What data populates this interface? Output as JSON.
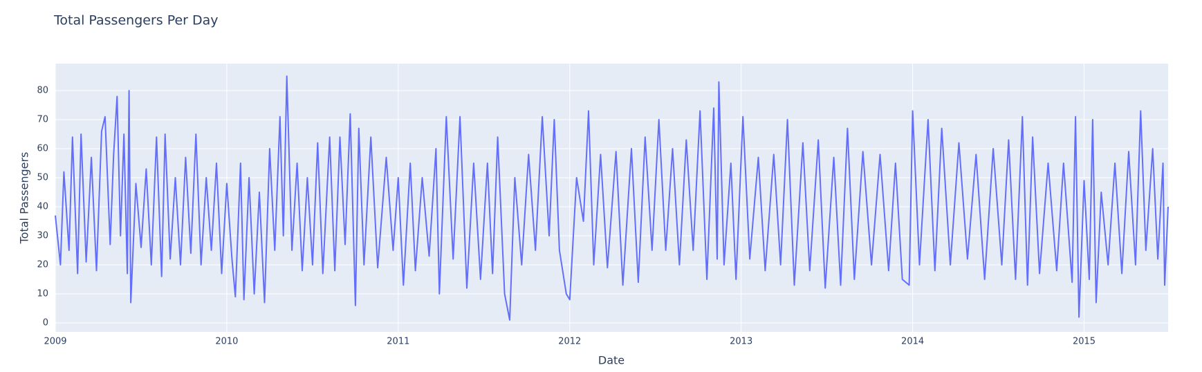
{
  "chart_data": {
    "type": "line",
    "title": "Total Passengers Per Day",
    "x_label": "Date",
    "y_label": "Total Passengers",
    "x": [
      2009.0,
      2009.03,
      2009.05,
      2009.08,
      2009.1,
      2009.13,
      2009.15,
      2009.18,
      2009.21,
      2009.24,
      2009.27,
      2009.29,
      2009.32,
      2009.34,
      2009.36,
      2009.38,
      2009.4,
      2009.42,
      2009.43,
      2009.44,
      2009.47,
      2009.5,
      2009.53,
      2009.56,
      2009.59,
      2009.62,
      2009.64,
      2009.67,
      2009.7,
      2009.73,
      2009.76,
      2009.79,
      2009.82,
      2009.85,
      2009.88,
      2009.91,
      2009.94,
      2009.97,
      2010.0,
      2010.03,
      2010.05,
      2010.08,
      2010.1,
      2010.13,
      2010.16,
      2010.19,
      2010.22,
      2010.25,
      2010.28,
      2010.31,
      2010.33,
      2010.35,
      2010.38,
      2010.41,
      2010.44,
      2010.47,
      2010.5,
      2010.53,
      2010.56,
      2010.6,
      2010.63,
      2010.66,
      2010.69,
      2010.72,
      2010.75,
      2010.77,
      2010.8,
      2010.84,
      2010.88,
      2010.93,
      2010.97,
      2011.0,
      2011.03,
      2011.07,
      2011.1,
      2011.14,
      2011.18,
      2011.22,
      2011.24,
      2011.28,
      2011.32,
      2011.36,
      2011.4,
      2011.44,
      2011.48,
      2011.52,
      2011.55,
      2011.58,
      2011.62,
      2011.65,
      2011.68,
      2011.72,
      2011.76,
      2011.8,
      2011.84,
      2011.88,
      2011.91,
      2011.94,
      2011.98,
      2012.0,
      2012.04,
      2012.08,
      2012.11,
      2012.14,
      2012.18,
      2012.22,
      2012.27,
      2012.31,
      2012.36,
      2012.4,
      2012.44,
      2012.48,
      2012.52,
      2012.56,
      2012.6,
      2012.64,
      2012.68,
      2012.72,
      2012.76,
      2012.8,
      2012.84,
      2012.86,
      2012.87,
      2012.9,
      2012.94,
      2012.97,
      2013.01,
      2013.05,
      2013.1,
      2013.14,
      2013.19,
      2013.23,
      2013.27,
      2013.31,
      2013.36,
      2013.4,
      2013.45,
      2013.49,
      2013.54,
      2013.58,
      2013.62,
      2013.66,
      2013.71,
      2013.76,
      2013.81,
      2013.86,
      2013.9,
      2013.94,
      2013.98,
      2014.0,
      2014.04,
      2014.09,
      2014.13,
      2014.17,
      2014.22,
      2014.27,
      2014.32,
      2014.37,
      2014.42,
      2014.47,
      2014.52,
      2014.56,
      2014.6,
      2014.64,
      2014.67,
      2014.7,
      2014.74,
      2014.79,
      2014.84,
      2014.88,
      2014.93,
      2014.95,
      2014.97,
      2015.0,
      2015.03,
      2015.05,
      2015.07,
      2015.1,
      2015.14,
      2015.18,
      2015.22,
      2015.26,
      2015.3,
      2015.33,
      2015.36,
      2015.4,
      2015.43,
      2015.46,
      2015.47,
      2015.49
    ],
    "series": [
      {
        "name": "Total Passengers",
        "color": "#636efa",
        "values": [
          37,
          20,
          52,
          25,
          64,
          17,
          65,
          21,
          57,
          18,
          66,
          71,
          27,
          58,
          78,
          30,
          65,
          17,
          80,
          7,
          48,
          26,
          53,
          20,
          64,
          16,
          65,
          22,
          50,
          20,
          57,
          24,
          65,
          20,
          50,
          25,
          55,
          17,
          48,
          22,
          9,
          55,
          8,
          50,
          10,
          45,
          7,
          60,
          25,
          71,
          30,
          85,
          25,
          55,
          18,
          50,
          20,
          62,
          17,
          64,
          18,
          64,
          27,
          72,
          6,
          67,
          20,
          64,
          19,
          57,
          25,
          50,
          13,
          55,
          18,
          50,
          23,
          60,
          10,
          71,
          22,
          71,
          12,
          55,
          15,
          55,
          17,
          64,
          10,
          1,
          50,
          20,
          58,
          25,
          71,
          30,
          70,
          25,
          10,
          8,
          50,
          35,
          73,
          20,
          58,
          19,
          59,
          13,
          60,
          14,
          64,
          25,
          70,
          25,
          60,
          20,
          63,
          25,
          73,
          15,
          74,
          22,
          83,
          20,
          55,
          15,
          71,
          22,
          57,
          18,
          58,
          20,
          70,
          13,
          62,
          18,
          63,
          12,
          57,
          13,
          67,
          15,
          59,
          20,
          58,
          18,
          55,
          15,
          13,
          73,
          20,
          70,
          18,
          67,
          20,
          62,
          22,
          58,
          15,
          60,
          20,
          63,
          15,
          71,
          13,
          64,
          17,
          55,
          18,
          55,
          14,
          71,
          2,
          49,
          15,
          70,
          7,
          45,
          20,
          55,
          17,
          59,
          20,
          73,
          25,
          60,
          22,
          55,
          13,
          40
        ]
      }
    ],
    "xlim": [
      2009,
      2015.49
    ],
    "xticks": [
      2009,
      2010,
      2011,
      2012,
      2013,
      2014,
      2015
    ],
    "ylim": [
      -3.1,
      89.3
    ],
    "yticks": [
      0,
      10,
      20,
      30,
      40,
      50,
      60,
      70,
      80
    ],
    "grid": true
  }
}
